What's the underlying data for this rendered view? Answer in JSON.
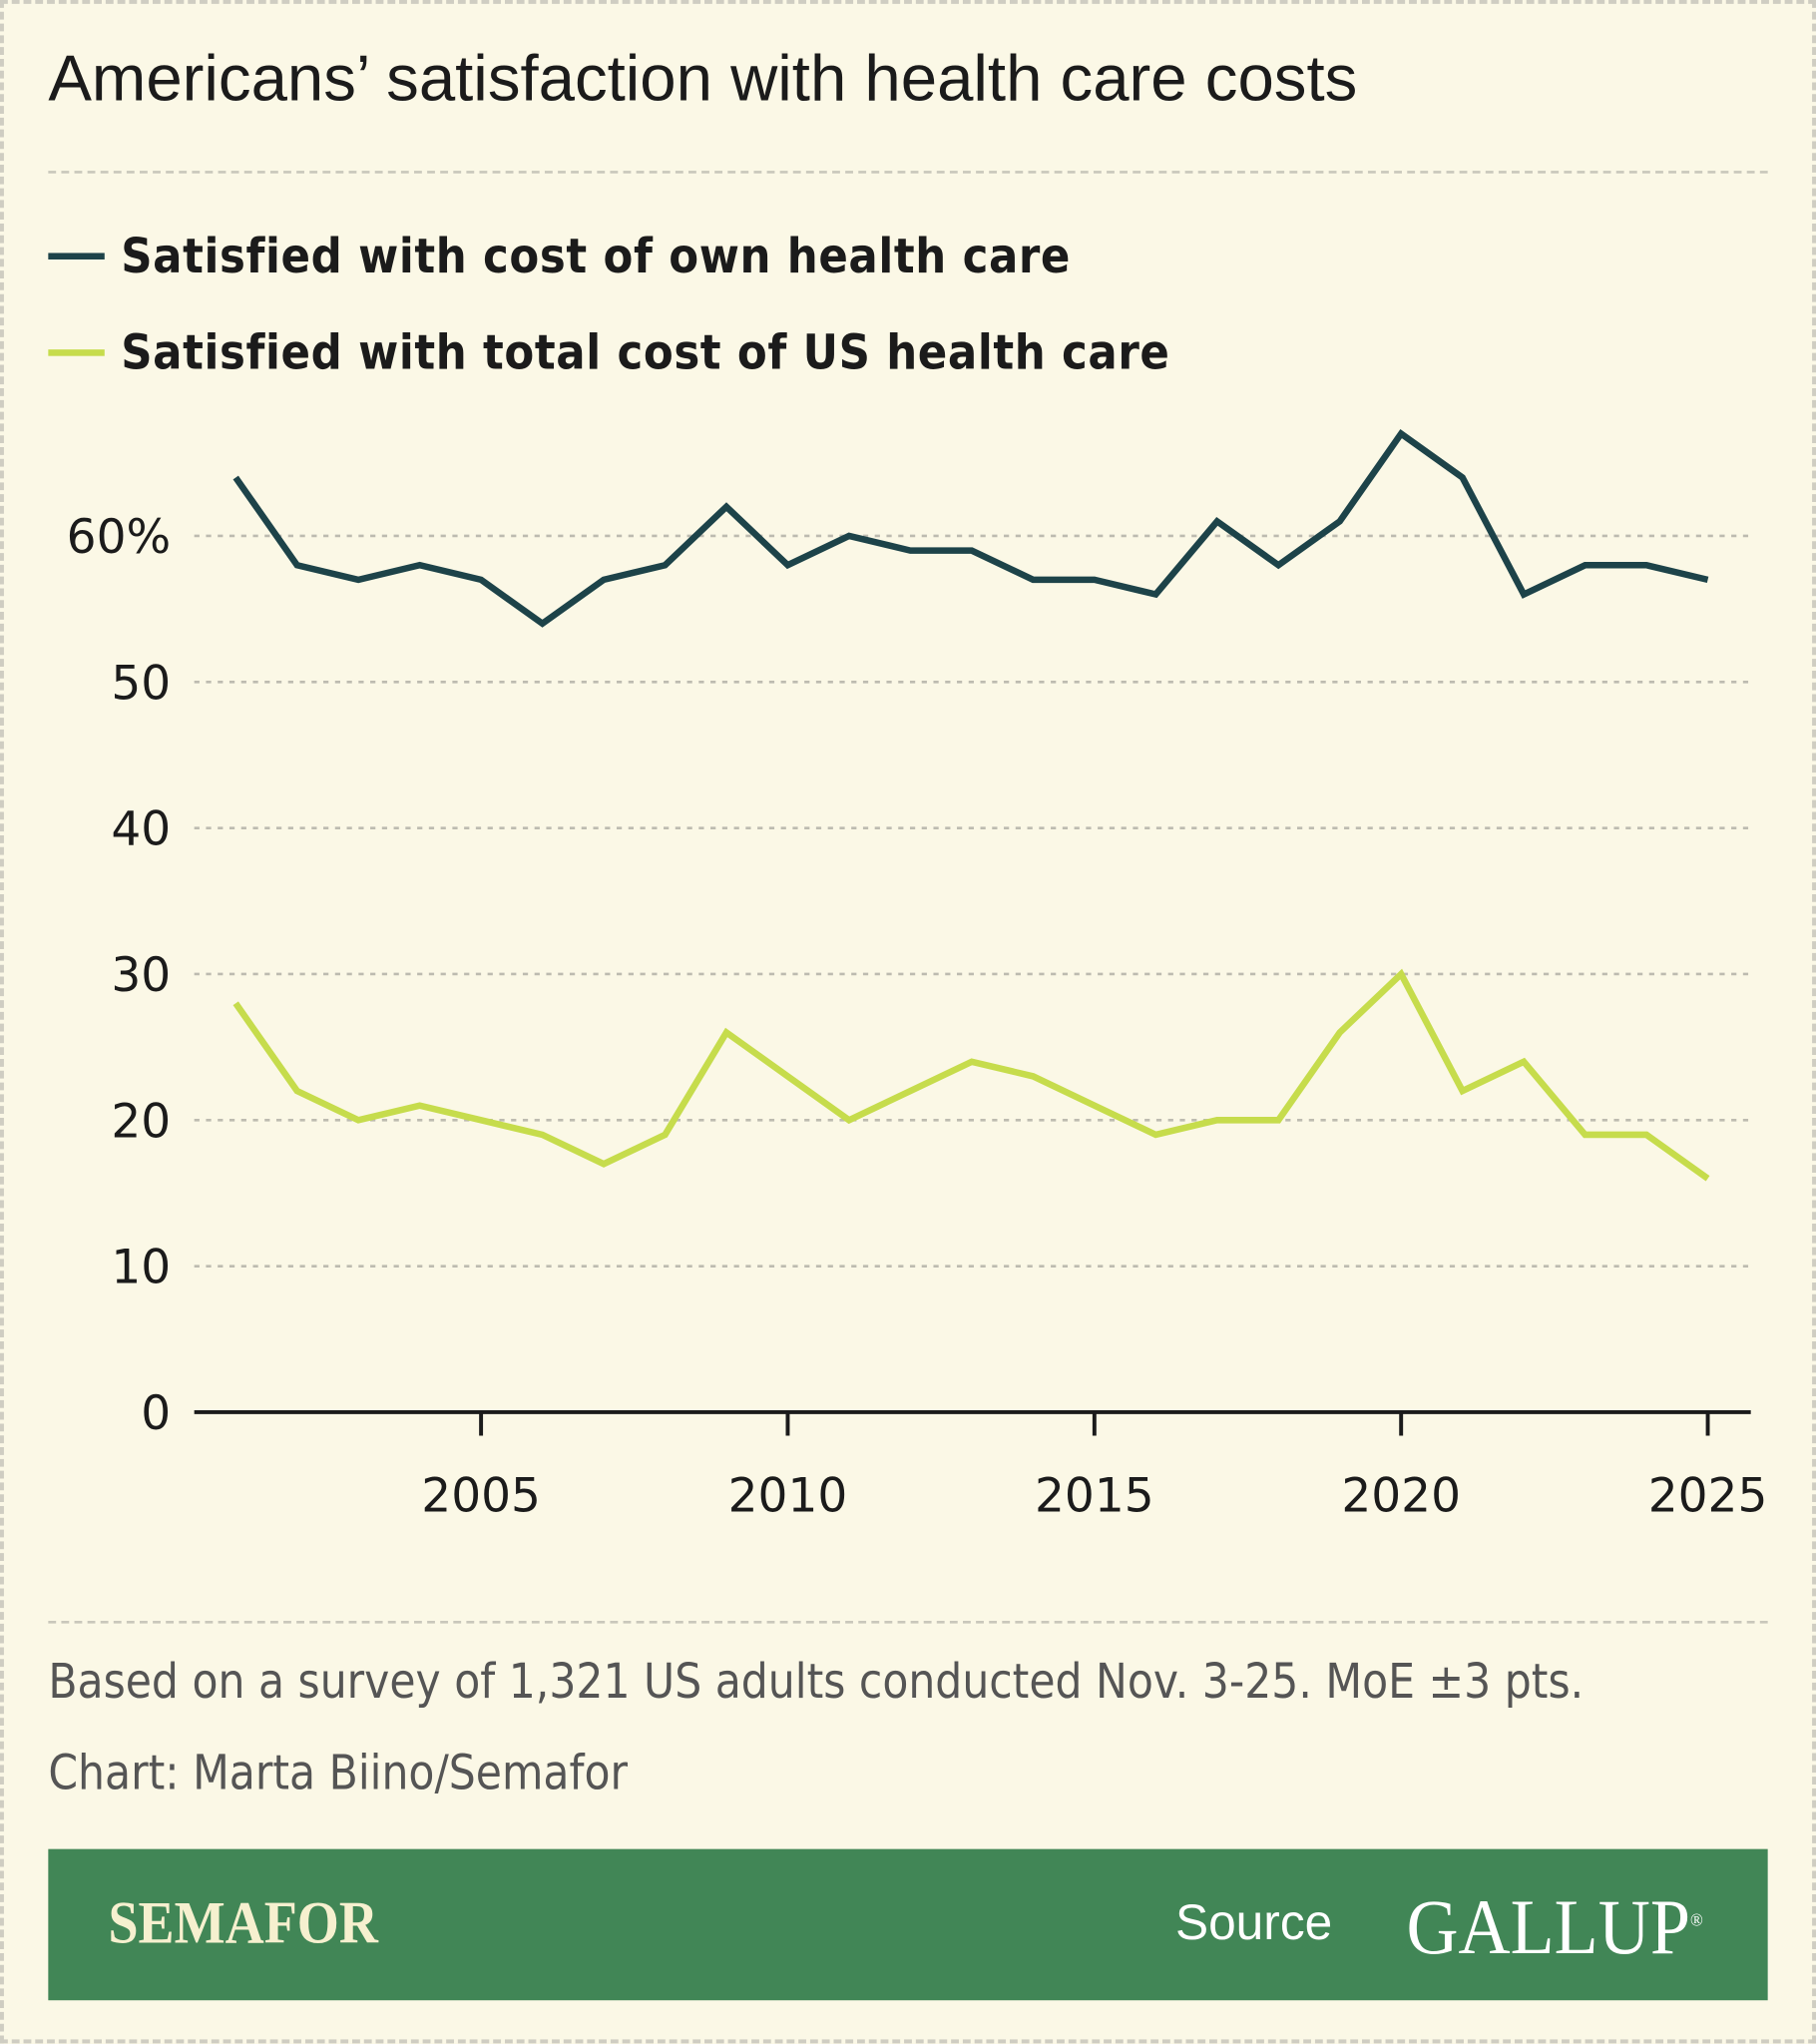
{
  "title": "Americans’ satisfaction with health care costs",
  "note": "Based on a survey of 1,321 US adults conducted Nov. 3-25. MoE ±3 pts.",
  "credit": "Chart: Marta Biino/Semafor",
  "footer": {
    "brand": "SEMAFOR",
    "source_label": "Source",
    "source_logo": "GALLUP",
    "color": "#418656"
  },
  "chart_data": {
    "type": "line",
    "x": [
      2001,
      2002,
      2003,
      2004,
      2005,
      2006,
      2007,
      2008,
      2009,
      2010,
      2011,
      2012,
      2013,
      2014,
      2015,
      2016,
      2017,
      2018,
      2019,
      2020,
      2021,
      2022,
      2023,
      2024,
      2025
    ],
    "series": [
      {
        "name": "Satisfied with cost of own health care",
        "color": "#1d4349",
        "values": [
          64,
          58,
          57,
          58,
          57,
          54,
          57,
          58,
          62,
          58,
          60,
          59,
          59,
          57,
          57,
          56,
          61,
          58,
          61,
          67,
          64,
          56,
          58,
          58,
          57
        ]
      },
      {
        "name": "Satisfied with total cost of US health care",
        "color": "#c6dc4c",
        "values": [
          28,
          22,
          20,
          21,
          20,
          19,
          17,
          19,
          26,
          23,
          20,
          22,
          24,
          23,
          21,
          19,
          20,
          20,
          26,
          30,
          22,
          24,
          19,
          19,
          16
        ]
      }
    ],
    "yticks": [
      {
        "v": 0,
        "label": "0"
      },
      {
        "v": 10,
        "label": "10"
      },
      {
        "v": 20,
        "label": "20"
      },
      {
        "v": 30,
        "label": "30"
      },
      {
        "v": 40,
        "label": "40"
      },
      {
        "v": 50,
        "label": "50"
      },
      {
        "v": 60,
        "label": "60%"
      }
    ],
    "xticks": [
      {
        "v": 2005,
        "label": "2005"
      },
      {
        "v": 2010,
        "label": "2010"
      },
      {
        "v": 2015,
        "label": "2015"
      },
      {
        "v": 2020,
        "label": "2020"
      },
      {
        "v": 2025,
        "label": "2025"
      }
    ],
    "ylim": [
      0,
      67
    ],
    "grid": true,
    "legend": "top-left"
  }
}
